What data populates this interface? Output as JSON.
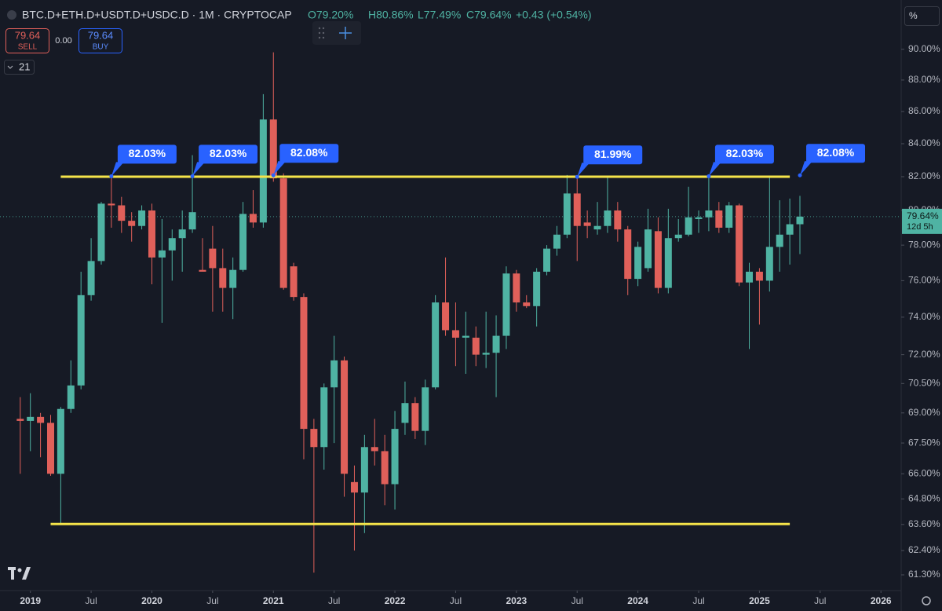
{
  "toolbar": {
    "symbol": "BTC.D+ETH.D+USDT.D+USDC.D · 1M · CRYPTOCAP",
    "open": "O79.20%",
    "high": "H80.86%",
    "low": "L77.49%",
    "close": "C79.64%",
    "change": "+0.43 (+0.54%)",
    "sell_price": "79.64",
    "sell": "SELL",
    "spread": "0.00",
    "buy_price": "79.64",
    "buy": "BUY",
    "indicators": "21",
    "unit": "%",
    "countdown": "12d 5h"
  },
  "chart_data": {
    "type": "candlestick",
    "log_scale": true,
    "grid": false,
    "up_color": "#4fb3a3",
    "down_color": "#e0605a",
    "line_color": "#f5e44a",
    "callout_color": "#2962ff",
    "x": [
      "2018-12",
      "2019-01",
      "2019-02",
      "2019-03",
      "2019-04",
      "2019-05",
      "2019-06",
      "2019-07",
      "2019-08",
      "2019-09",
      "2019-10",
      "2019-11",
      "2019-12",
      "2020-01",
      "2020-02",
      "2020-03",
      "2020-04",
      "2020-05",
      "2020-06",
      "2020-07",
      "2020-08",
      "2020-09",
      "2020-10",
      "2020-11",
      "2020-12",
      "2021-01",
      "2021-02",
      "2021-03",
      "2021-04",
      "2021-05",
      "2021-06",
      "2021-07",
      "2021-08",
      "2021-09",
      "2021-10",
      "2021-11",
      "2021-12",
      "2022-01",
      "2022-02",
      "2022-03",
      "2022-04",
      "2022-05",
      "2022-06",
      "2022-07",
      "2022-08",
      "2022-09",
      "2022-10",
      "2022-11",
      "2022-12",
      "2023-01",
      "2023-02",
      "2023-03",
      "2023-04",
      "2023-05",
      "2023-06",
      "2023-07",
      "2023-08",
      "2023-09",
      "2023-10",
      "2023-11",
      "2023-12",
      "2024-01",
      "2024-02",
      "2024-03",
      "2024-04",
      "2024-05",
      "2024-06",
      "2024-07",
      "2024-08",
      "2024-09",
      "2024-10",
      "2024-11",
      "2024-12",
      "2025-01",
      "2025-02",
      "2025-03",
      "2025-04",
      "2025-05"
    ],
    "open": [
      68.7,
      68.6,
      68.8,
      68.5,
      66.0,
      69.2,
      70.4,
      75.2,
      77.1,
      80.4,
      80.3,
      79.4,
      79.1,
      80.0,
      77.3,
      77.7,
      78.4,
      78.9,
      76.6,
      77.8,
      76.7,
      75.6,
      76.6,
      79.8,
      79.3,
      85.5,
      81.9,
      76.8,
      75.1,
      68.2,
      67.3,
      70.3,
      71.7,
      65.6,
      65.1,
      67.3,
      67.1,
      65.5,
      68.5,
      69.5,
      68.1,
      70.3,
      74.8,
      73.3,
      72.9,
      72.9,
      72.0,
      72.1,
      73.0,
      76.4,
      74.8,
      74.6,
      76.5,
      77.8,
      78.6,
      81.0,
      79.3,
      78.9,
      79.1,
      80.0,
      78.9,
      76.1,
      76.7,
      78.8,
      75.6,
      78.4,
      78.6,
      79.5,
      79.6,
      80.0,
      79.0,
      80.3,
      75.9,
      76.5,
      76.0,
      77.9,
      78.6,
      79.2
    ],
    "high": [
      69.8,
      70.0,
      69.0,
      68.9,
      69.3,
      71.7,
      76.5,
      78.4,
      80.5,
      82.0,
      80.8,
      79.9,
      80.3,
      80.4,
      79.5,
      78.9,
      80.0,
      83.3,
      78.4,
      79.1,
      77.8,
      77.3,
      80.5,
      81.2,
      87.1,
      89.8,
      82.2,
      77.0,
      75.3,
      68.7,
      70.5,
      73.0,
      71.9,
      66.4,
      67.9,
      68.7,
      67.9,
      69.1,
      70.6,
      69.8,
      70.7,
      75.2,
      77.3,
      74.8,
      74.3,
      73.5,
      74.3,
      74.1,
      76.8,
      76.6,
      75.2,
      76.7,
      78.0,
      79.1,
      82.1,
      82.0,
      80.0,
      80.5,
      82.0,
      80.5,
      79.1,
      78.2,
      80.1,
      79.6,
      80.1,
      79.5,
      81.4,
      80.0,
      82.0,
      80.5,
      80.5,
      80.4,
      77.0,
      76.7,
      82.0,
      80.6,
      80.7,
      80.86
    ],
    "low": [
      66.0,
      67.1,
      66.8,
      65.9,
      63.6,
      69.0,
      70.2,
      74.9,
      76.9,
      79.0,
      78.7,
      78.2,
      78.9,
      75.8,
      73.7,
      76.0,
      76.5,
      78.7,
      76.5,
      74.3,
      74.3,
      73.9,
      76.5,
      79.0,
      79.0,
      81.7,
      75.5,
      74.9,
      66.7,
      61.4,
      66.2,
      67.5,
      64.9,
      62.4,
      63.2,
      66.4,
      64.5,
      64.3,
      67.9,
      67.7,
      67.4,
      70.2,
      73.0,
      71.4,
      71.0,
      71.4,
      71.3,
      69.8,
      72.3,
      74.3,
      74.5,
      73.5,
      76.3,
      77.4,
      78.4,
      77.1,
      78.4,
      78.6,
      78.7,
      78.2,
      75.2,
      75.7,
      76.5,
      75.3,
      75.3,
      78.2,
      78.5,
      78.7,
      78.8,
      78.7,
      78.7,
      75.7,
      72.3,
      73.6,
      75.4,
      76.5,
      76.9,
      77.49
    ],
    "close": [
      68.6,
      68.8,
      68.5,
      66.0,
      69.2,
      70.4,
      75.2,
      77.1,
      80.4,
      80.3,
      79.4,
      79.1,
      80.0,
      77.3,
      77.7,
      78.4,
      78.9,
      79.9,
      76.5,
      76.7,
      75.6,
      76.6,
      79.8,
      79.3,
      85.5,
      81.9,
      75.6,
      75.1,
      68.2,
      67.3,
      70.3,
      71.7,
      66.0,
      65.1,
      67.3,
      67.1,
      65.5,
      68.2,
      69.5,
      68.1,
      70.3,
      74.8,
      73.3,
      72.9,
      73.0,
      72.0,
      72.1,
      73.0,
      76.4,
      74.8,
      74.6,
      76.5,
      77.8,
      78.6,
      81.0,
      79.1,
      79.1,
      79.1,
      80.0,
      78.9,
      76.1,
      77.9,
      78.9,
      75.6,
      78.4,
      78.6,
      79.6,
      79.6,
      80.0,
      79.0,
      80.3,
      75.9,
      76.5,
      76.0,
      77.9,
      78.6,
      79.2,
      79.64
    ],
    "xlim": [
      "2018-10",
      "2026-03"
    ],
    "xticks": [
      {
        "value": "2019-01",
        "label": "2019"
      },
      {
        "value": "2019-07",
        "label": "Jul"
      },
      {
        "value": "2020-01",
        "label": "2020"
      },
      {
        "value": "2020-07",
        "label": "Jul"
      },
      {
        "value": "2021-01",
        "label": "2021"
      },
      {
        "value": "2021-07",
        "label": "Jul"
      },
      {
        "value": "2022-01",
        "label": "2022"
      },
      {
        "value": "2022-07",
        "label": "Jul"
      },
      {
        "value": "2023-01",
        "label": "2023"
      },
      {
        "value": "2023-07",
        "label": "Jul"
      },
      {
        "value": "2024-01",
        "label": "2024"
      },
      {
        "value": "2024-07",
        "label": "Jul"
      },
      {
        "value": "2025-01",
        "label": "2025"
      },
      {
        "value": "2025-07",
        "label": "Jul"
      },
      {
        "value": "2026-01",
        "label": "2026"
      }
    ],
    "ylim": [
      60.6,
      93.3
    ],
    "yticks": [
      {
        "value": 90,
        "label": "90.00%"
      },
      {
        "value": 88,
        "label": "88.00%"
      },
      {
        "value": 86,
        "label": "86.00%"
      },
      {
        "value": 84,
        "label": "84.00%"
      },
      {
        "value": 82,
        "label": "82.00%"
      },
      {
        "value": 80,
        "label": "80.00%"
      },
      {
        "value": 78,
        "label": "78.00%"
      },
      {
        "value": 76,
        "label": "76.00%"
      },
      {
        "value": 74,
        "label": "74.00%"
      },
      {
        "value": 72,
        "label": "72.00%"
      },
      {
        "value": 70.5,
        "label": "70.50%"
      },
      {
        "value": 69,
        "label": "69.00%"
      },
      {
        "value": 67.5,
        "label": "67.50%"
      },
      {
        "value": 66,
        "label": "66.00%"
      },
      {
        "value": 64.8,
        "label": "64.80%"
      },
      {
        "value": 63.6,
        "label": "63.60%"
      },
      {
        "value": 62.4,
        "label": "62.40%"
      },
      {
        "value": 61.3,
        "label": "61.30%"
      }
    ],
    "hlines": [
      {
        "value": 82.0,
        "start": "2019-04",
        "end": "2025-04"
      },
      {
        "value": 63.62,
        "start": "2019-03",
        "end": "2025-04"
      }
    ],
    "callouts": [
      {
        "x": "2019-09",
        "value": 82.03,
        "label": "82.03%"
      },
      {
        "x": "2020-05",
        "value": 82.03,
        "label": "82.03%"
      },
      {
        "x": "2021-01",
        "value": 82.08,
        "label": "82.08%"
      },
      {
        "x": "2023-07",
        "value": 81.99,
        "label": "81.99%"
      },
      {
        "x": "2024-08",
        "value": 82.03,
        "label": "82.03%"
      },
      {
        "x": "2025-05",
        "value": 82.08,
        "label": "82.08%"
      }
    ],
    "last_price": {
      "value": 79.64,
      "label": "79.64%"
    }
  }
}
